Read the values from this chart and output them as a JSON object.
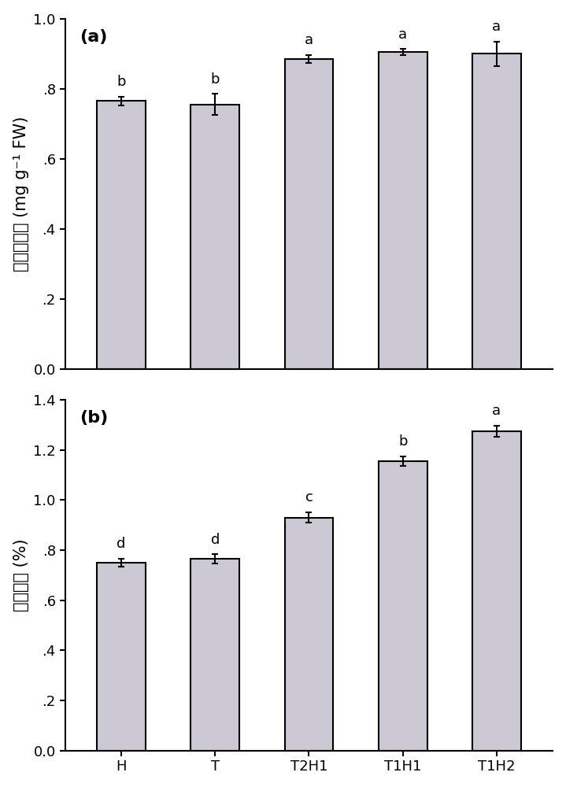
{
  "categories": [
    "H",
    "T",
    "T2H1",
    "T1H1",
    "T1H2"
  ],
  "chart_a": {
    "values": [
      0.765,
      0.755,
      0.885,
      0.905,
      0.9
    ],
    "errors": [
      0.013,
      0.03,
      0.012,
      0.008,
      0.035
    ],
    "sig_labels": [
      "b",
      "b",
      "a",
      "a",
      "a"
    ],
    "ylabel": "可溶性蛋白 (mg g⁻¹ FW)",
    "ylim": [
      0.0,
      1.0
    ],
    "yticks": [
      0.0,
      0.2,
      0.4,
      0.6,
      0.8,
      1.0
    ],
    "yticklabels": [
      "0.0",
      ".2",
      ".4",
      ".6",
      ".8",
      "1.0"
    ],
    "panel_label": "(a)"
  },
  "chart_b": {
    "values": [
      0.75,
      0.765,
      0.93,
      1.155,
      1.275
    ],
    "errors": [
      0.015,
      0.018,
      0.02,
      0.018,
      0.022
    ],
    "sig_labels": [
      "d",
      "d",
      "c",
      "b",
      "a"
    ],
    "ylabel": "可溶性糖 (%)",
    "ylim": [
      0.0,
      1.4
    ],
    "yticks": [
      0.0,
      0.2,
      0.4,
      0.6,
      0.8,
      1.0,
      1.2,
      1.4
    ],
    "yticklabels": [
      "0.0",
      ".2",
      ".4",
      ".6",
      ".8",
      "1.0",
      "1.2",
      "1.4"
    ],
    "panel_label": "(b)"
  },
  "bar_color": "#cdc9d4",
  "bar_edgecolor": "#000000",
  "bar_linewidth": 1.5,
  "bar_width": 0.52,
  "errorbar_color": "#000000",
  "errorbar_linewidth": 1.5,
  "errorbar_capsize": 3,
  "sig_fontsize": 13,
  "ylabel_fontsize": 15,
  "tick_fontsize": 13,
  "panel_fontsize": 16,
  "background_color": "#ffffff",
  "figsize": [
    7.19,
    10.0
  ],
  "dpi": 100
}
